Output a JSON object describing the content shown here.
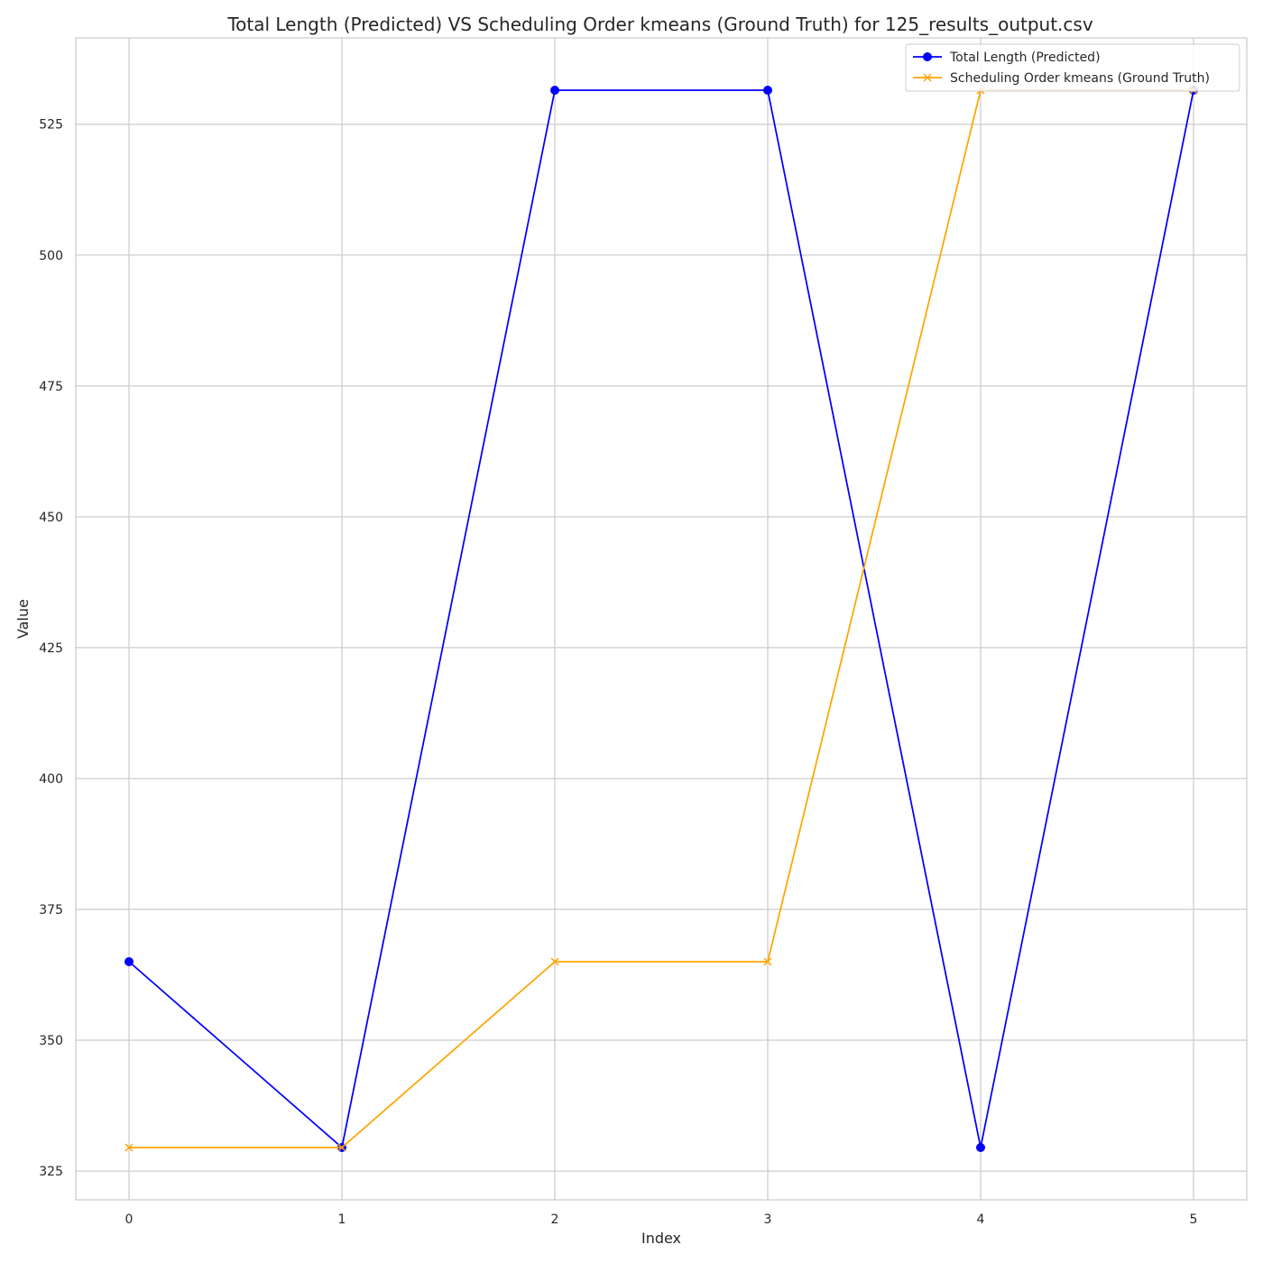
{
  "chart_data": {
    "type": "line",
    "title": "Total Length (Predicted) VS Scheduling Order kmeans (Ground Truth) for 125_results_output.csv",
    "xlabel": "Index",
    "ylabel": "Value",
    "x": [
      0,
      1,
      2,
      3,
      4,
      5
    ],
    "xticks": [
      "0",
      "1",
      "2",
      "3",
      "4",
      "5"
    ],
    "yticks": [
      "325",
      "350",
      "375",
      "400",
      "425",
      "450",
      "475",
      "500",
      "525"
    ],
    "xlim": [
      -0.25,
      5.25
    ],
    "ylim": [
      319.5,
      541.5
    ],
    "grid": true,
    "legend_position": "top-right",
    "series": [
      {
        "name": "Total Length (Predicted)",
        "values": [
          365,
          329.5,
          531.5,
          531.5,
          329.5,
          531.5
        ],
        "color": "#0000ff",
        "marker": "circle"
      },
      {
        "name": "Scheduling Order kmeans (Ground Truth)",
        "values": [
          329.5,
          329.5,
          365,
          365,
          531.5,
          531.5
        ],
        "color": "#ffa500",
        "marker": "x"
      }
    ]
  }
}
